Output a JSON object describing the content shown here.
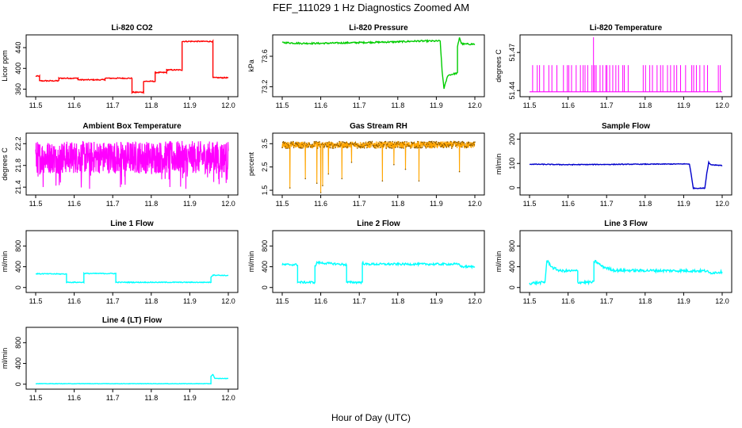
{
  "figure": {
    "title": "FEF_111029  1 Hz Diagnostics Zoomed AM",
    "xlabel": "Hour of Day (UTC)"
  },
  "chart_data": [
    {
      "type": "line",
      "title": "Li-820 CO2",
      "ylabel": "Licor ppm",
      "color": "#ff0000",
      "xlim": [
        11.5,
        12.0
      ],
      "ylim": [
        350,
        460
      ],
      "yticks": [
        360,
        400,
        440
      ],
      "xticks": [
        11.5,
        11.6,
        11.7,
        11.8,
        11.9,
        12.0
      ],
      "noise": 1,
      "x": [
        11.5,
        11.51,
        11.51,
        11.56,
        11.56,
        11.61,
        11.61,
        11.68,
        11.68,
        11.75,
        11.75,
        11.76,
        11.76,
        11.78,
        11.78,
        11.81,
        11.81,
        11.84,
        11.84,
        11.88,
        11.88,
        11.96,
        11.96,
        12.0
      ],
      "y": [
        385,
        385,
        376,
        376,
        381,
        381,
        378,
        378,
        381,
        381,
        354,
        354,
        354,
        354,
        375,
        375,
        392,
        392,
        397,
        397,
        452,
        452,
        382,
        382
      ]
    },
    {
      "type": "line",
      "title": "Li-820 Pressure",
      "ylabel": "kPa",
      "color": "#00cc00",
      "xlim": [
        11.5,
        12.0
      ],
      "ylim": [
        73.1,
        73.85
      ],
      "yticks": [
        73.2,
        73.6
      ],
      "xticks": [
        11.5,
        11.6,
        11.7,
        11.8,
        11.9,
        12.0
      ],
      "noise": 0.01,
      "x": [
        11.5,
        11.55,
        11.6,
        11.7,
        11.8,
        11.85,
        11.91,
        11.915,
        11.92,
        11.93,
        11.955,
        11.955,
        11.96,
        11.965,
        11.97,
        12.0
      ],
      "y": [
        73.78,
        73.77,
        73.77,
        73.78,
        73.79,
        73.8,
        73.8,
        73.4,
        73.18,
        73.35,
        73.38,
        73.72,
        73.85,
        73.77,
        73.76,
        73.76
      ]
    },
    {
      "type": "spikes",
      "title": "Li-820 Temperature",
      "ylabel": "degrees C",
      "color": "#ff00ff",
      "xlim": [
        11.5,
        12.0
      ],
      "ylim": [
        51.437,
        51.482
      ],
      "yticks": [
        51.44,
        51.47
      ],
      "xticks": [
        11.5,
        11.6,
        11.7,
        11.8,
        11.9,
        12.0
      ],
      "base": 51.439,
      "peak": 51.46,
      "spike_x": [
        11.508,
        11.52,
        11.526,
        11.537,
        11.55,
        11.558,
        11.571,
        11.588,
        11.598,
        11.602,
        11.609,
        11.621,
        11.632,
        11.639,
        11.644,
        11.651,
        11.662,
        11.669,
        11.673,
        11.683,
        11.69,
        11.698,
        11.701,
        11.708,
        11.716,
        11.724,
        11.731,
        11.742,
        11.746,
        11.756,
        11.795,
        11.801,
        11.812,
        11.819,
        11.831,
        11.84,
        11.846,
        11.858,
        11.866,
        11.875,
        11.882,
        11.892,
        11.905,
        11.921,
        11.926,
        11.933,
        11.942,
        11.953,
        11.962,
        11.99,
        11.995
      ],
      "tall_x": 11.666,
      "tall_y": 51.482
    },
    {
      "type": "noise",
      "title": "Ambient Box Temperature",
      "ylabel": "degrees C",
      "color": "#ff00ff",
      "xlim": [
        11.5,
        12.0
      ],
      "ylim": [
        21.3,
        22.35
      ],
      "yticks": [
        21.4,
        21.8,
        22.2
      ],
      "xticks": [
        11.5,
        11.6,
        11.7,
        11.8,
        11.9,
        12.0
      ],
      "center": 21.95,
      "amp": 0.3,
      "dip_min": 21.35
    },
    {
      "type": "noise",
      "title": "Gas Stream RH",
      "ylabel": "percent",
      "color": "#ffa500",
      "xlim": [
        11.5,
        12.0
      ],
      "ylim": [
        1.4,
        3.85
      ],
      "yticks": [
        1.5,
        2.5,
        3.5
      ],
      "xticks": [
        11.5,
        11.6,
        11.7,
        11.8,
        11.9,
        12.0
      ],
      "center": 3.45,
      "amp": 0.15,
      "dip_x": [
        11.52,
        11.56,
        11.59,
        11.6,
        11.605,
        11.62,
        11.655,
        11.68,
        11.76,
        11.79,
        11.82,
        11.855,
        11.96
      ],
      "dip_y": [
        1.6,
        2.0,
        1.8,
        1.4,
        1.7,
        2.2,
        2.0,
        2.7,
        1.9,
        2.6,
        2.4,
        1.9,
        2.3
      ]
    },
    {
      "type": "line",
      "title": "Sample Flow",
      "ylabel": "ml/min",
      "color": "#0000cc",
      "xlim": [
        11.5,
        12.0
      ],
      "ylim": [
        -20,
        215
      ],
      "yticks": [
        0,
        100,
        200
      ],
      "xticks": [
        11.5,
        11.6,
        11.7,
        11.8,
        11.9,
        12.0
      ],
      "noise": 1.5,
      "x": [
        11.5,
        11.6,
        11.7,
        11.8,
        11.915,
        11.92,
        11.925,
        11.955,
        11.96,
        11.965,
        11.97,
        12.0
      ],
      "y": [
        97,
        95,
        96,
        97,
        98,
        50,
        -2,
        -2,
        60,
        105,
        95,
        92
      ]
    },
    {
      "type": "line",
      "title": "Line 1 Flow",
      "ylabel": "ml/min",
      "color": "#00ffff",
      "xlim": [
        11.5,
        12.0
      ],
      "ylim": [
        -50,
        1050
      ],
      "yticks": [
        0,
        400,
        800
      ],
      "xticks": [
        11.5,
        11.6,
        11.7,
        11.8,
        11.9,
        12.0
      ],
      "noise": 8,
      "x": [
        11.5,
        11.58,
        11.58,
        11.625,
        11.625,
        11.708,
        11.708,
        11.955,
        11.955,
        11.96,
        12.0
      ],
      "y": [
        265,
        260,
        100,
        100,
        270,
        270,
        100,
        100,
        200,
        240,
        230
      ]
    },
    {
      "type": "line",
      "title": "Line 2 Flow",
      "ylabel": "ml/min",
      "color": "#00ffff",
      "xlim": [
        11.5,
        12.0
      ],
      "ylim": [
        -50,
        1050
      ],
      "yticks": [
        0,
        400,
        800
      ],
      "xticks": [
        11.5,
        11.6,
        11.7,
        11.8,
        11.9,
        12.0
      ],
      "noise": 20,
      "x": [
        11.5,
        11.54,
        11.54,
        11.585,
        11.585,
        11.59,
        11.667,
        11.667,
        11.708,
        11.708,
        11.715,
        11.96,
        11.965,
        12.0
      ],
      "y": [
        440,
        440,
        100,
        100,
        400,
        480,
        440,
        100,
        100,
        480,
        450,
        450,
        400,
        400
      ]
    },
    {
      "type": "line",
      "title": "Line 3 Flow",
      "ylabel": "ml/min",
      "color": "#00ffff",
      "xlim": [
        11.5,
        12.0
      ],
      "ylim": [
        -50,
        1050
      ],
      "yticks": [
        0,
        400,
        800
      ],
      "xticks": [
        11.5,
        11.6,
        11.7,
        11.8,
        11.9,
        12.0
      ],
      "noise": 25,
      "x": [
        11.5,
        11.54,
        11.54,
        11.545,
        11.56,
        11.58,
        11.625,
        11.625,
        11.667,
        11.667,
        11.672,
        11.69,
        11.72,
        11.96,
        11.965,
        12.0
      ],
      "y": [
        80,
        100,
        100,
        520,
        380,
        320,
        320,
        100,
        100,
        500,
        500,
        400,
        330,
        320,
        280,
        300
      ]
    },
    {
      "type": "line",
      "title": "Line 4 (LT) Flow",
      "ylabel": "ml/min",
      "color": "#00ffff",
      "xlim": [
        11.5,
        12.0
      ],
      "ylim": [
        -50,
        1050
      ],
      "yticks": [
        0,
        400,
        800
      ],
      "xticks": [
        11.5,
        11.6,
        11.7,
        11.8,
        11.9,
        12.0
      ],
      "noise": 4,
      "x": [
        11.5,
        11.955,
        11.955,
        11.96,
        11.965,
        12.0
      ],
      "y": [
        10,
        10,
        150,
        190,
        110,
        110
      ]
    }
  ]
}
